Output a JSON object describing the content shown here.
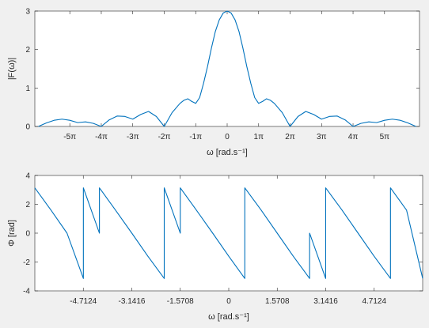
{
  "chart_data": [
    {
      "type": "line",
      "xlabel": "ω [rad.s⁻¹]",
      "ylabel": "|F(ω)|",
      "xlim": [
        -19.2,
        19.2
      ],
      "ylim": [
        0,
        3
      ],
      "yticks": [
        0,
        1,
        2,
        3
      ],
      "yticklabels": [
        "0",
        "1",
        "2",
        "3"
      ],
      "xticks": [
        -15.708,
        -12.566,
        -9.425,
        -6.283,
        -3.142,
        0,
        3.142,
        6.283,
        9.425,
        12.566,
        15.708
      ],
      "xticklabels": [
        "-5π",
        "-4π",
        "-3π",
        "-2π",
        "-1π",
        "0",
        "1π",
        "2π",
        "3π",
        "4π",
        "5π"
      ],
      "grid": false,
      "series": [
        {
          "color": "#0072bd",
          "points": [
            [
              -18.85,
              0
            ],
            [
              -18.06,
              0.09
            ],
            [
              -17.28,
              0.16
            ],
            [
              -16.49,
              0.19
            ],
            [
              -15.71,
              0.16
            ],
            [
              -14.92,
              0.1
            ],
            [
              -14.14,
              0.12
            ],
            [
              -13.35,
              0.08
            ],
            [
              -12.57,
              0
            ],
            [
              -11.78,
              0.17
            ],
            [
              -10.99,
              0.27
            ],
            [
              -10.21,
              0.26
            ],
            [
              -9.42,
              0.19
            ],
            [
              -8.64,
              0.31
            ],
            [
              -7.85,
              0.39
            ],
            [
              -7.07,
              0.26
            ],
            [
              -6.28,
              0
            ],
            [
              -5.5,
              0.36
            ],
            [
              -4.71,
              0.6
            ],
            [
              -4.32,
              0.68
            ],
            [
              -3.93,
              0.72
            ],
            [
              -3.53,
              0.65
            ],
            [
              -3.14,
              0.6
            ],
            [
              -2.75,
              0.75
            ],
            [
              -2.36,
              1.12
            ],
            [
              -1.96,
              1.56
            ],
            [
              -1.57,
              2.04
            ],
            [
              -1.18,
              2.47
            ],
            [
              -0.79,
              2.77
            ],
            [
              -0.39,
              2.95
            ],
            [
              0,
              3.0
            ],
            [
              0.39,
              2.95
            ],
            [
              0.79,
              2.77
            ],
            [
              1.18,
              2.47
            ],
            [
              1.57,
              2.04
            ],
            [
              1.96,
              1.56
            ],
            [
              2.36,
              1.12
            ],
            [
              2.75,
              0.75
            ],
            [
              3.14,
              0.6
            ],
            [
              3.53,
              0.65
            ],
            [
              3.93,
              0.72
            ],
            [
              4.32,
              0.68
            ],
            [
              4.71,
              0.6
            ],
            [
              5.5,
              0.36
            ],
            [
              6.28,
              0
            ],
            [
              7.07,
              0.26
            ],
            [
              7.85,
              0.39
            ],
            [
              8.64,
              0.31
            ],
            [
              9.42,
              0.19
            ],
            [
              10.21,
              0.26
            ],
            [
              10.99,
              0.27
            ],
            [
              11.78,
              0.17
            ],
            [
              12.57,
              0
            ],
            [
              13.35,
              0.08
            ],
            [
              14.14,
              0.12
            ],
            [
              14.92,
              0.1
            ],
            [
              15.71,
              0.16
            ],
            [
              16.49,
              0.19
            ],
            [
              17.28,
              0.16
            ],
            [
              18.06,
              0.09
            ],
            [
              18.85,
              0
            ]
          ]
        }
      ]
    },
    {
      "type": "line",
      "xlabel": "ω [rad.s⁻¹]",
      "ylabel": "Φ [rad]",
      "xlim": [
        -6.283,
        6.283
      ],
      "ylim": [
        -4,
        4
      ],
      "yticks": [
        -4,
        -2,
        0,
        2,
        4
      ],
      "yticklabels": [
        "-4",
        "-2",
        "0",
        "2",
        "4"
      ],
      "xticks": [
        -4.7124,
        -3.1416,
        -1.5708,
        0,
        1.5708,
        3.1416,
        4.7124
      ],
      "xticklabels": [
        "-4.7124",
        "-3.1416",
        "-1.5708",
        "0",
        "1.5708",
        "3.1416",
        "4.7124"
      ],
      "grid": false,
      "series": [
        {
          "color": "#0072bd",
          "points": [
            [
              -6.283,
              3.14
            ],
            [
              -5.76,
              1.6
            ],
            [
              -5.24,
              0
            ],
            [
              -4.71,
              -3.14
            ],
            [
              -4.71,
              3.14
            ],
            [
              -4.19,
              0
            ],
            [
              -4.19,
              3.14
            ],
            [
              -3.67,
              1.6
            ],
            [
              -3.14,
              0
            ],
            [
              -2.62,
              -1.6
            ],
            [
              -2.09,
              -3.14
            ],
            [
              -2.09,
              3.14
            ],
            [
              -1.57,
              0
            ],
            [
              -1.57,
              3.14
            ],
            [
              -1.05,
              1.6
            ],
            [
              -0.52,
              0
            ],
            [
              0,
              -1.6
            ],
            [
              0.52,
              -3.14
            ],
            [
              0.52,
              3.14
            ],
            [
              1.05,
              1.6
            ],
            [
              1.57,
              0
            ],
            [
              2.09,
              -1.6
            ],
            [
              2.62,
              -3.14
            ],
            [
              2.62,
              0
            ],
            [
              3.14,
              -3.14
            ],
            [
              3.14,
              3.14
            ],
            [
              3.67,
              1.6
            ],
            [
              4.19,
              0
            ],
            [
              4.71,
              -1.6
            ],
            [
              5.24,
              -3.14
            ],
            [
              5.24,
              3.14
            ],
            [
              5.76,
              1.6
            ],
            [
              6.283,
              -3.14
            ]
          ]
        }
      ]
    }
  ]
}
